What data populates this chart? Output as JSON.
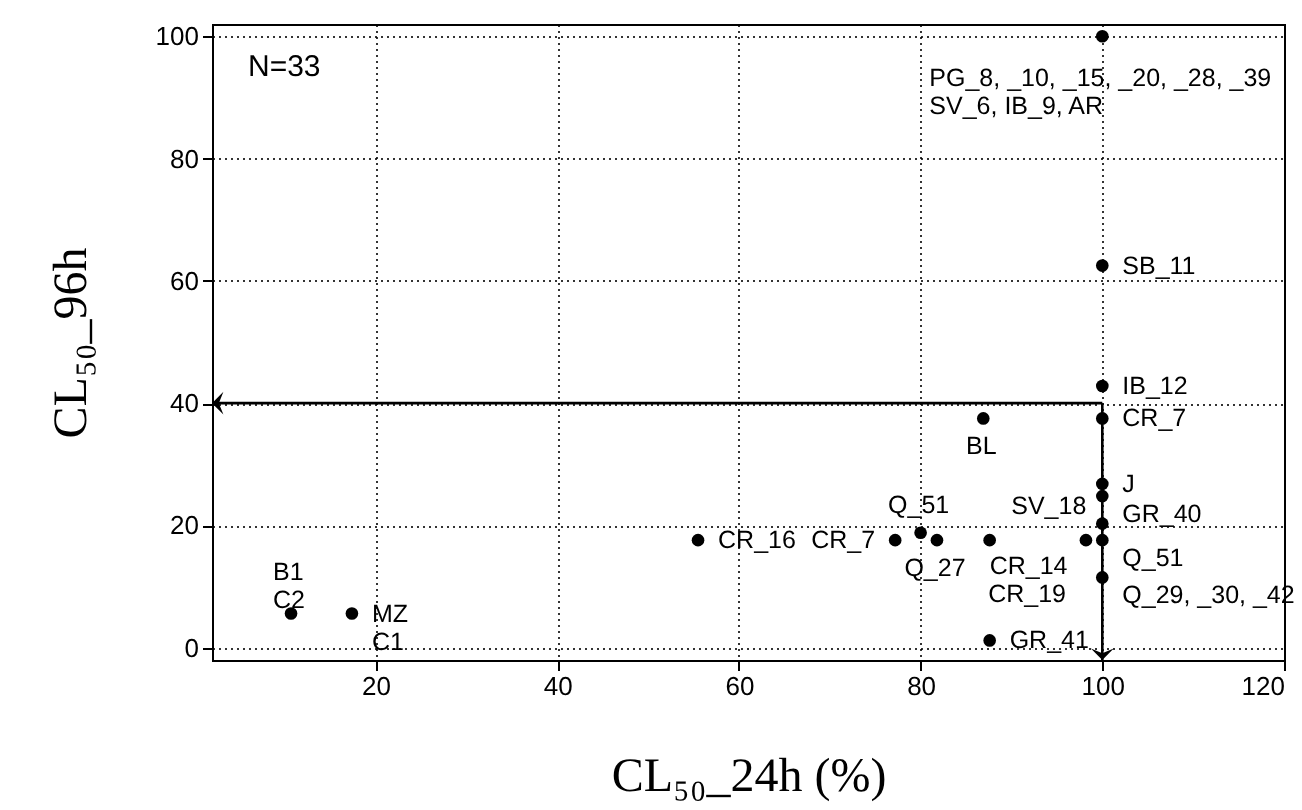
{
  "chart_data": {
    "type": "scatter",
    "xlabel": "CL₅₀_24h (%)",
    "ylabel": "CL₅₀_96h",
    "x": [
      10.7,
      17.4,
      55.5,
      77.2,
      80,
      81.8,
      87.6,
      86.9,
      87.6,
      98.2,
      100,
      100,
      100,
      100,
      100,
      100,
      100,
      100,
      100
    ],
    "series": [
      {
        "color": "#000000",
        "values": [
          5.6,
          5.6,
          17.6,
          17.6,
          18.8,
          17.6,
          17.6,
          37.5,
          1.2,
          17.6,
          100,
          62.5,
          42.8,
          37.5,
          26.8,
          24.8,
          20.3,
          17.6,
          11.5
        ]
      }
    ],
    "xlim": [
      2,
      120
    ],
    "ylim": [
      -2,
      102
    ],
    "xticks": [
      20,
      40,
      60,
      80,
      100,
      120
    ],
    "yticks": [
      0,
      20,
      40,
      60,
      80,
      100
    ],
    "grid": true,
    "marker": "circle",
    "ref_lines": [
      {
        "axis": "y",
        "value": 40
      },
      {
        "axis": "x",
        "value": 100
      }
    ],
    "annotations": [
      "N=33",
      {
        "text": "PG_8, _10, _15, _20, _28, _39\nSV_6, IB_9, AR",
        "x": 100,
        "y": 100
      },
      {
        "text": "SB_11",
        "x": 100,
        "y": 62.5
      },
      {
        "text": "IB_12",
        "x": 100,
        "y": 42.8
      },
      {
        "text": "CR_7",
        "x": 100,
        "y": 37.5
      },
      {
        "text": "J",
        "x": 100,
        "y": 26.8
      },
      {
        "text": "GR_40",
        "x": 100,
        "y": 24.8
      },
      {
        "text": "SV_18",
        "x": 100,
        "y": 20.3
      },
      {
        "text": "Q_51",
        "x": 100,
        "y": 17.6
      },
      {
        "text": "Q_29, _30, _42",
        "x": 100,
        "y": 11.5
      },
      {
        "text": "BL",
        "x": 86.9,
        "y": 37.5
      },
      {
        "text": "GR_41",
        "x": 87.6,
        "y": 1.2
      },
      {
        "text": "B1\nC2",
        "x": 10.7,
        "y": 5.6
      },
      {
        "text": "MZ\nC1",
        "x": 17.4,
        "y": 5.6
      },
      {
        "text": "CR_16",
        "x": 55.5,
        "y": 17.6
      },
      {
        "text": "Q_51",
        "x": 80,
        "y": 18.8
      },
      {
        "text": "Q_27",
        "x": 81.8,
        "y": 17.6
      },
      {
        "text": "CR_7",
        "x": 77.2,
        "y": 17.6
      },
      {
        "text": "CR_14",
        "x": 87.6,
        "y": 17.6
      },
      {
        "text": "CR_19",
        "x": 98.2,
        "y": 17.6
      }
    ]
  }
}
